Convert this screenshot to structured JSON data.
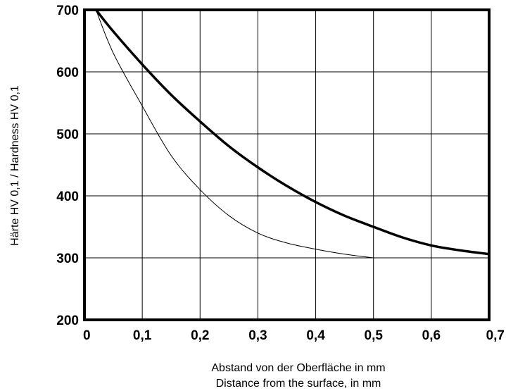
{
  "chart_data": {
    "type": "line",
    "title": "",
    "xlabel": [
      "Abstand von der Oberfläche in mm",
      "Distance from the surface, in mm"
    ],
    "ylabel": "Härte HV 0,1 / Hardness HV 0,1",
    "xlim": [
      0,
      0.7
    ],
    "ylim": [
      200,
      700
    ],
    "grid": true,
    "x_ticks": [
      0,
      0.1,
      0.2,
      0.3,
      0.4,
      0.5,
      0.6,
      0.7
    ],
    "x_tick_labels": [
      "0",
      "0,1",
      "0,2",
      "0,3",
      "0,4",
      "0,5",
      "0,6",
      "0,7"
    ],
    "y_ticks": [
      200,
      300,
      400,
      500,
      600,
      700
    ],
    "y_tick_labels": [
      "200",
      "300",
      "400",
      "500",
      "600",
      "700"
    ],
    "series": [
      {
        "style": "thick",
        "color": "#000000",
        "x": [
          0.02,
          0.05,
          0.1,
          0.15,
          0.2,
          0.25,
          0.3,
          0.35,
          0.4,
          0.45,
          0.5,
          0.55,
          0.6,
          0.65,
          0.7
        ],
        "y": [
          700,
          665,
          612,
          563,
          520,
          480,
          446,
          416,
          390,
          368,
          350,
          333,
          320,
          312,
          306
        ]
      },
      {
        "style": "thin",
        "color": "#000000",
        "x": [
          0.02,
          0.05,
          0.1,
          0.15,
          0.2,
          0.25,
          0.3,
          0.35,
          0.4,
          0.45,
          0.5
        ],
        "y": [
          700,
          630,
          545,
          465,
          410,
          368,
          340,
          324,
          314,
          306,
          300
        ]
      }
    ]
  }
}
